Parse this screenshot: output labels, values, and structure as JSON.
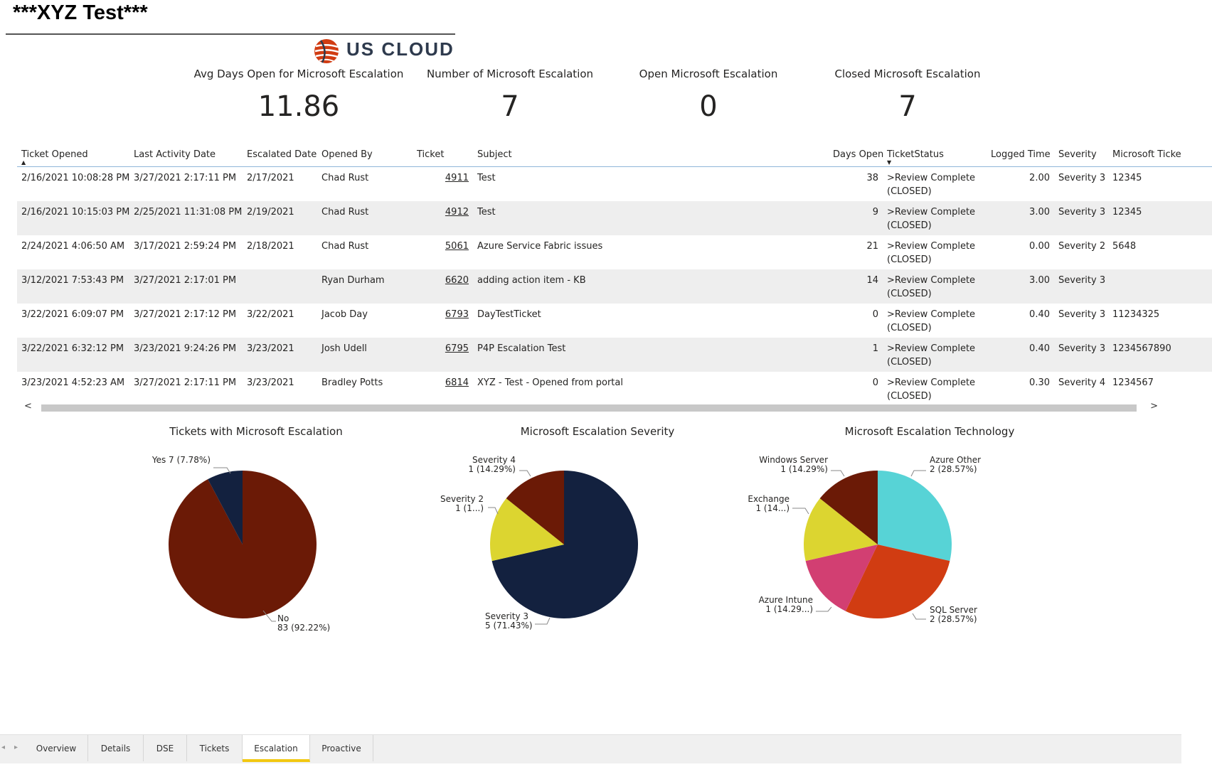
{
  "report": {
    "title": "***XYZ Test***",
    "logo_text": "US CLOUD"
  },
  "cards": [
    {
      "label": "Avg Days Open for Microsoft Escalation",
      "value": "11.86"
    },
    {
      "label": "Number of Microsoft Escalation",
      "value": "7"
    },
    {
      "label": "Open Microsoft Escalation",
      "value": "0"
    },
    {
      "label": "Closed Microsoft Escalation",
      "value": "7"
    }
  ],
  "table": {
    "columns": [
      "Ticket Opened",
      "Last Activity Date",
      "Escalated Date",
      "Opened By",
      "Ticket",
      "Subject",
      "Days Open",
      "TicketStatus",
      "Logged Time",
      "Severity",
      "Microsoft Ticke"
    ],
    "rows": [
      {
        "opened": "2/16/2021 10:08:28 PM",
        "last": "3/27/2021 2:17:11 PM",
        "escalated": "2/17/2021",
        "by": "Chad Rust",
        "ticket": "4911",
        "subject": "Test",
        "days": "38",
        "status": ">Review Complete (CLOSED)",
        "logged": "2.00",
        "severity": "Severity 3",
        "ms": "12345"
      },
      {
        "opened": "2/16/2021 10:15:03 PM",
        "last": "2/25/2021 11:31:08 PM",
        "escalated": "2/19/2021",
        "by": "Chad Rust",
        "ticket": "4912",
        "subject": "Test",
        "days": "9",
        "status": ">Review Complete (CLOSED)",
        "logged": "3.00",
        "severity": "Severity 3",
        "ms": "12345"
      },
      {
        "opened": "2/24/2021 4:06:50 AM",
        "last": "3/17/2021 2:59:24 PM",
        "escalated": "2/18/2021",
        "by": "Chad Rust",
        "ticket": "5061",
        "subject": "Azure Service Fabric issues",
        "days": "21",
        "status": ">Review Complete (CLOSED)",
        "logged": "0.00",
        "severity": "Severity 2",
        "ms": "5648"
      },
      {
        "opened": "3/12/2021 7:53:43 PM",
        "last": "3/27/2021 2:17:01 PM",
        "escalated": "",
        "by": "Ryan Durham",
        "ticket": "6620",
        "subject": "adding action item - KB",
        "days": "14",
        "status": ">Review Complete (CLOSED)",
        "logged": "3.00",
        "severity": "Severity 3",
        "ms": ""
      },
      {
        "opened": "3/22/2021 6:09:07 PM",
        "last": "3/27/2021 2:17:12 PM",
        "escalated": "3/22/2021",
        "by": "Jacob Day",
        "ticket": "6793",
        "subject": "DayTestTicket",
        "days": "0",
        "status": ">Review Complete (CLOSED)",
        "logged": "0.40",
        "severity": "Severity 3",
        "ms": "11234325"
      },
      {
        "opened": "3/22/2021 6:32:12 PM",
        "last": "3/23/2021 9:24:26 PM",
        "escalated": "3/23/2021",
        "by": "Josh Udell",
        "ticket": "6795",
        "subject": "P4P Escalation Test",
        "days": "1",
        "status": ">Review Complete (CLOSED)",
        "logged": "0.40",
        "severity": "Severity 3",
        "ms": "1234567890"
      },
      {
        "opened": "3/23/2021 4:52:23 AM",
        "last": "3/27/2021 2:17:11 PM",
        "escalated": "3/23/2021",
        "by": "Bradley Potts",
        "ticket": "6814",
        "subject": "XYZ - Test - Opened from portal",
        "days": "0",
        "status": ">Review Complete (CLOSED)",
        "logged": "0.30",
        "severity": "Severity 4",
        "ms": "1234567"
      }
    ]
  },
  "scroll": {
    "left": "<",
    "right": ">"
  },
  "chart_data": [
    {
      "type": "pie",
      "title": "Tickets with Microsoft Escalation",
      "slices": [
        {
          "name": "No",
          "value": 83,
          "label_line1": "No",
          "label_line2": "83 (92.22%)",
          "color": "#6b1a06"
        },
        {
          "name": "Yes",
          "value": 7,
          "label_line1": "Yes 7 (7.78%)",
          "label_line2": "",
          "color": "#13213f"
        }
      ]
    },
    {
      "type": "pie",
      "title": "Microsoft Escalation Severity",
      "slices": [
        {
          "name": "Severity 3",
          "value": 5,
          "label_line1": "Severity 3",
          "label_line2": "5 (71.43%)",
          "color": "#13213f"
        },
        {
          "name": "Severity 2",
          "value": 1,
          "label_line1": "Severity 2",
          "label_line2": "1 (1...)",
          "color": "#dcd530"
        },
        {
          "name": "Severity 4",
          "value": 1,
          "label_line1": "Severity 4",
          "label_line2": "1 (14.29%)",
          "color": "#6b1a06"
        }
      ]
    },
    {
      "type": "pie",
      "title": "Microsoft Escalation Technology",
      "slices": [
        {
          "name": "Azure Other",
          "value": 2,
          "label_line1": "Azure Other",
          "label_line2": "2 (28.57%)",
          "color": "#57d3d6"
        },
        {
          "name": "SQL Server",
          "value": 2,
          "label_line1": "SQL Server",
          "label_line2": "2 (28.57%)",
          "color": "#d13c12"
        },
        {
          "name": "Azure Intune",
          "value": 1,
          "label_line1": "Azure Intune",
          "label_line2": "1 (14.29...)",
          "color": "#d23f72"
        },
        {
          "name": "Exchange",
          "value": 1,
          "label_line1": "Exchange",
          "label_line2": "1 (14...)",
          "color": "#dcd530"
        },
        {
          "name": "Windows Server",
          "value": 1,
          "label_line1": "Windows Server",
          "label_line2": "1 (14.29%)",
          "color": "#6b1a06"
        }
      ]
    }
  ],
  "tabs": [
    "Overview",
    "Details",
    "DSE",
    "Tickets",
    "Escalation",
    "Proactive"
  ],
  "active_tab": "Escalation",
  "tab_nav": {
    "prev": "◂",
    "next": "▸"
  }
}
